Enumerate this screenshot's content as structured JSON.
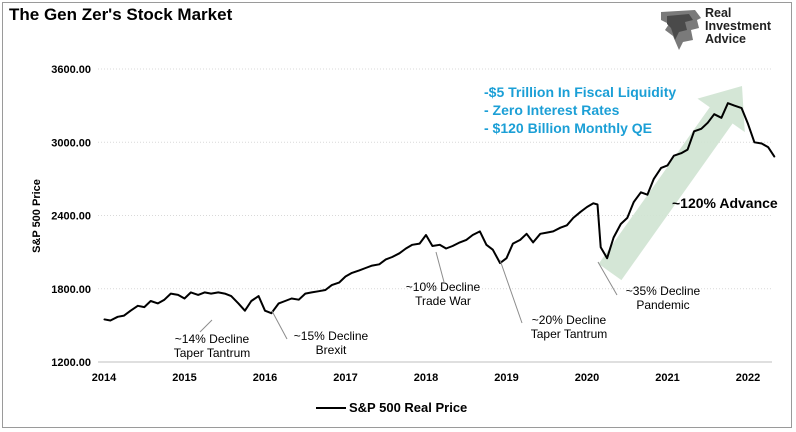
{
  "chart_data": {
    "type": "line",
    "title": "The Gen Zer's Stock Market",
    "ylabel": "S&P 500 Price",
    "xlabel": "",
    "ylim": [
      1200,
      3800
    ],
    "xlim": [
      2014,
      2022.38
    ],
    "y_ticks": [
      {
        "value": 1200,
        "label": "1200.00"
      },
      {
        "value": 1800,
        "label": "1800.00"
      },
      {
        "value": 2400,
        "label": "2400.00"
      },
      {
        "value": 3000,
        "label": "3000.00"
      },
      {
        "value": 3600,
        "label": "3600.00"
      }
    ],
    "x_ticks": [
      {
        "value": 2014,
        "label": "2014"
      },
      {
        "value": 2015,
        "label": "2015"
      },
      {
        "value": 2016,
        "label": "2016"
      },
      {
        "value": 2017,
        "label": "2017"
      },
      {
        "value": 2018,
        "label": "2018"
      },
      {
        "value": 2019,
        "label": "2019"
      },
      {
        "value": 2020,
        "label": "2020"
      },
      {
        "value": 2021,
        "label": "2021"
      },
      {
        "value": 2022,
        "label": "2022"
      }
    ],
    "grid": "horizontal",
    "legend": {
      "position": "bottom-center",
      "label": "S&P 500 Real Price"
    },
    "series": [
      {
        "name": "S&P 500 Real Price",
        "color": "#000000",
        "x": [
          2014.0,
          2014.08,
          2014.17,
          2014.25,
          2014.33,
          2014.42,
          2014.5,
          2014.58,
          2014.67,
          2014.75,
          2014.83,
          2014.92,
          2015.0,
          2015.08,
          2015.17,
          2015.25,
          2015.33,
          2015.42,
          2015.5,
          2015.58,
          2015.67,
          2015.75,
          2015.83,
          2015.92,
          2016.0,
          2016.08,
          2016.17,
          2016.25,
          2016.33,
          2016.42,
          2016.5,
          2016.58,
          2016.67,
          2016.75,
          2016.83,
          2016.92,
          2017.0,
          2017.08,
          2017.17,
          2017.25,
          2017.33,
          2017.42,
          2017.5,
          2017.58,
          2017.67,
          2017.75,
          2017.83,
          2017.92,
          2018.0,
          2018.08,
          2018.17,
          2018.25,
          2018.33,
          2018.42,
          2018.5,
          2018.58,
          2018.67,
          2018.75,
          2018.83,
          2018.92,
          2019.0,
          2019.08,
          2019.17,
          2019.25,
          2019.33,
          2019.42,
          2019.5,
          2019.58,
          2019.67,
          2019.75,
          2019.83,
          2019.92,
          2020.0,
          2020.08,
          2020.13,
          2020.17,
          2020.25,
          2020.33,
          2020.42,
          2020.5,
          2020.58,
          2020.67,
          2020.75,
          2020.83,
          2020.92,
          2021.0,
          2021.08,
          2021.17,
          2021.25,
          2021.33,
          2021.42,
          2021.5,
          2021.58,
          2021.67,
          2021.75,
          2021.83,
          2021.92,
          2022.0,
          2022.08,
          2022.17,
          2022.25,
          2022.33
        ],
        "values": [
          1550,
          1540,
          1570,
          1580,
          1620,
          1660,
          1650,
          1700,
          1680,
          1710,
          1760,
          1750,
          1720,
          1770,
          1750,
          1770,
          1760,
          1770,
          1760,
          1740,
          1680,
          1620,
          1700,
          1740,
          1620,
          1600,
          1680,
          1700,
          1720,
          1710,
          1760,
          1770,
          1780,
          1790,
          1830,
          1850,
          1900,
          1930,
          1950,
          1970,
          1990,
          2000,
          2040,
          2060,
          2090,
          2130,
          2160,
          2170,
          2240,
          2150,
          2160,
          2130,
          2150,
          2180,
          2200,
          2240,
          2270,
          2160,
          2120,
          2010,
          2050,
          2170,
          2200,
          2250,
          2180,
          2250,
          2260,
          2270,
          2300,
          2320,
          2380,
          2430,
          2470,
          2500,
          2490,
          2140,
          2050,
          2220,
          2330,
          2380,
          2510,
          2590,
          2570,
          2700,
          2790,
          2810,
          2890,
          2910,
          2940,
          3090,
          3110,
          3160,
          3230,
          3200,
          3320,
          3300,
          3280,
          3150,
          3000,
          2990,
          2960,
          2880
        ]
      }
    ],
    "annotations": {
      "declines": [
        {
          "lines": [
            "~14% Decline",
            "Taper Tantrum"
          ]
        },
        {
          "lines": [
            "~15% Decline",
            "Brexit"
          ]
        },
        {
          "lines": [
            "~10% Decline",
            "Trade War"
          ]
        },
        {
          "lines": [
            "~20% Decline",
            "Taper Tantrum"
          ]
        },
        {
          "lines": [
            "~35% Decline",
            "Pandemic"
          ]
        }
      ],
      "blue_list": [
        "-$5 Trillion In Fiscal Liquidity",
        "- Zero Interest Rates",
        "- $120 Billion Monthly QE"
      ],
      "advance_label": "~120% Advance"
    },
    "colors": {
      "line": "#000000",
      "arrow": "#cfe3d2",
      "blue": "#1b9fd6",
      "grid": "#d9d9d9"
    }
  },
  "branding": {
    "logo_text": "Real\nInvestment\nAdvice"
  }
}
